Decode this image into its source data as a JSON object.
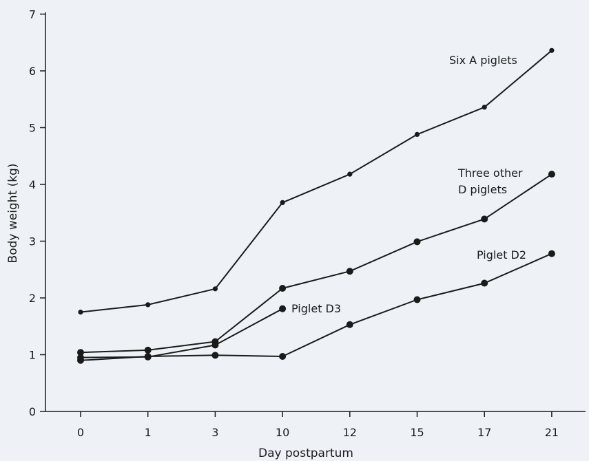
{
  "chart_data": {
    "type": "line",
    "title": "",
    "xlabel": "Day postpartum",
    "ylabel": "Body weight (kg)",
    "categories": [
      "0",
      "1",
      "3",
      "10",
      "12",
      "15",
      "17",
      "21"
    ],
    "ylim": [
      0,
      7
    ],
    "yticks": [
      "0",
      "1",
      "2",
      "3",
      "4",
      "5",
      "6",
      "7"
    ],
    "grid": false,
    "colors": {
      "background": "#eef2f7",
      "ink": "#1a1a1a"
    },
    "series": [
      {
        "name": "Six A piglets",
        "values": [
          1.75,
          1.88,
          2.16,
          3.68,
          4.18,
          4.88,
          5.36,
          6.36
        ],
        "marker": "small"
      },
      {
        "name": "Three other D piglets",
        "values": [
          1.04,
          1.08,
          1.23,
          2.17,
          2.47,
          2.99,
          3.39,
          4.18
        ],
        "marker": "large"
      },
      {
        "name": "Piglet D2",
        "values": [
          0.9,
          0.97,
          0.99,
          0.97,
          1.53,
          1.97,
          2.26,
          2.78
        ],
        "marker": "large"
      },
      {
        "name": "Piglet D3",
        "values": [
          0.95,
          0.96,
          1.17,
          1.81,
          null,
          null,
          null,
          null
        ],
        "marker": "large"
      }
    ]
  }
}
